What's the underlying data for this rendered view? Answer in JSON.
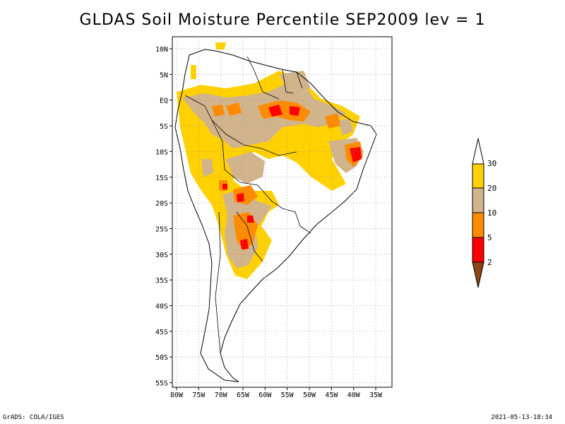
{
  "title": "GLDAS Soil Moisture Percentile SEP2009 lev = 1",
  "map": {
    "lat_labels": [
      "10N",
      "5N",
      "EQ",
      "5S",
      "10S",
      "15S",
      "20S",
      "25S",
      "30S",
      "35S",
      "40S",
      "45S",
      "50S",
      "55S"
    ],
    "lon_labels": [
      "80W",
      "75W",
      "70W",
      "65W",
      "60W",
      "55W",
      "50W",
      "45W",
      "40W",
      "35W"
    ],
    "grid": "dotted",
    "region": "South America"
  },
  "colorbar": {
    "labels": [
      "30",
      "20",
      "10",
      "5",
      "2"
    ],
    "colors": {
      "above_30": "#ffffff",
      "c20_30": "#ffd100",
      "c10_20": "#d2b48c",
      "c5_10": "#ff8c00",
      "c2_5": "#ff0000",
      "below_2": "#8b4513"
    }
  },
  "footer": {
    "left": "GrADS: COLA/IGES",
    "right": "2021-05-13-18:34"
  }
}
